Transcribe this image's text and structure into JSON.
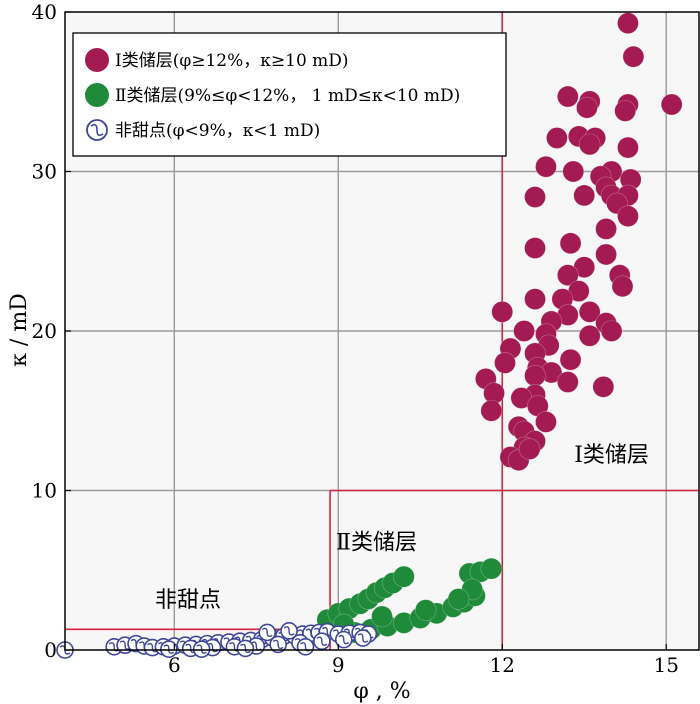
{
  "chart_data": {
    "type": "scatter",
    "xlabel": "φ , %",
    "ylabel": "κ / mD",
    "xlim": [
      4.0,
      15.6
    ],
    "ylim": [
      0,
      40
    ],
    "xticks": [
      6,
      9,
      12,
      15
    ],
    "yticks": [
      0,
      10,
      20,
      30,
      40
    ],
    "grid": true,
    "legend_position": "top-left",
    "colors": {
      "class1": "#a31b52",
      "class2": "#1f8a3a",
      "nonsweet": "#3e469a",
      "boundary": "#d4253d",
      "grid": "#9a9a9a",
      "plot_bg": "#f7f7f7"
    },
    "legend": [
      {
        "key": "class1",
        "marker": "filled",
        "label": "Ⅰ类储层(φ≥12%，κ≥10 mD)"
      },
      {
        "key": "class2",
        "marker": "filled",
        "label": "Ⅱ类储层(9%≤φ<12%， 1 mD≤κ<10 mD)"
      },
      {
        "key": "nonsweet",
        "marker": "open",
        "label": "非甜点(φ<9%，κ<1 mD)"
      }
    ],
    "region_labels": [
      {
        "text": "Ⅰ类储层",
        "x": 14.0,
        "y": 11.8
      },
      {
        "text": "Ⅱ类储层",
        "x": 9.7,
        "y": 6.3
      },
      {
        "text": "非甜点",
        "x": 6.25,
        "y": 2.7
      }
    ],
    "boundaries": [
      {
        "x1": 12,
        "y1": 0,
        "x2": 12,
        "y2": 40
      },
      {
        "x1": 12,
        "y1": 10,
        "x2": 15.6,
        "y2": 10
      },
      {
        "x1": 8.85,
        "y1": 0,
        "x2": 8.85,
        "y2": 10
      },
      {
        "x1": 8.85,
        "y1": 10,
        "x2": 12,
        "y2": 10
      },
      {
        "x1": 4.0,
        "y1": 1.3,
        "x2": 8.85,
        "y2": 1.3
      }
    ],
    "series": [
      {
        "key": "class1",
        "marker": "filled",
        "points": [
          [
            14.3,
            39.3
          ],
          [
            14.4,
            37.2
          ],
          [
            15.1,
            34.2
          ],
          [
            14.3,
            34.2
          ],
          [
            14.25,
            33.8
          ],
          [
            13.2,
            34.7
          ],
          [
            13.6,
            34.4
          ],
          [
            13.55,
            34.0
          ],
          [
            13.0,
            32.1
          ],
          [
            13.4,
            32.2
          ],
          [
            13.7,
            32.1
          ],
          [
            13.6,
            31.7
          ],
          [
            14.3,
            31.5
          ],
          [
            13.3,
            30.0
          ],
          [
            14.0,
            30.0
          ],
          [
            13.8,
            29.7
          ],
          [
            12.8,
            30.3
          ],
          [
            14.35,
            29.5
          ],
          [
            13.9,
            29.0
          ],
          [
            13.5,
            28.5
          ],
          [
            14.0,
            28.5
          ],
          [
            14.3,
            28.5
          ],
          [
            14.1,
            28.0
          ],
          [
            14.3,
            27.2
          ],
          [
            12.6,
            28.4
          ],
          [
            13.9,
            26.4
          ],
          [
            13.25,
            25.5
          ],
          [
            12.6,
            25.2
          ],
          [
            13.9,
            24.8
          ],
          [
            13.5,
            24.0
          ],
          [
            13.2,
            23.5
          ],
          [
            14.15,
            23.5
          ],
          [
            14.2,
            22.8
          ],
          [
            13.4,
            22.5
          ],
          [
            13.1,
            22.0
          ],
          [
            12.6,
            22.0
          ],
          [
            12.0,
            21.2
          ],
          [
            13.6,
            21.2
          ],
          [
            13.2,
            21.0
          ],
          [
            13.9,
            20.5
          ],
          [
            12.9,
            20.6
          ],
          [
            14.0,
            20.0
          ],
          [
            12.4,
            20.0
          ],
          [
            12.8,
            19.8
          ],
          [
            13.6,
            19.7
          ],
          [
            12.85,
            19.1
          ],
          [
            13.25,
            18.2
          ],
          [
            12.15,
            18.9
          ],
          [
            12.6,
            18.6
          ],
          [
            12.05,
            18.0
          ],
          [
            12.65,
            17.7
          ],
          [
            12.9,
            17.4
          ],
          [
            12.6,
            17.2
          ],
          [
            13.2,
            16.8
          ],
          [
            13.85,
            16.5
          ],
          [
            11.7,
            17.0
          ],
          [
            11.85,
            16.1
          ],
          [
            12.6,
            16.0
          ],
          [
            12.35,
            15.8
          ],
          [
            12.65,
            15.3
          ],
          [
            11.8,
            15.0
          ],
          [
            12.8,
            14.3
          ],
          [
            12.3,
            14.0
          ],
          [
            12.4,
            13.7
          ],
          [
            12.6,
            13.1
          ],
          [
            12.4,
            12.7
          ],
          [
            12.15,
            12.1
          ],
          [
            12.3,
            11.9
          ],
          [
            12.5,
            12.6
          ]
        ]
      },
      {
        "key": "class2",
        "marker": "filled",
        "points": [
          [
            8.8,
            1.9
          ],
          [
            9.0,
            2.3
          ],
          [
            9.2,
            2.6
          ],
          [
            9.4,
            2.9
          ],
          [
            9.55,
            3.2
          ],
          [
            9.7,
            3.6
          ],
          [
            9.85,
            3.9
          ],
          [
            10.0,
            4.2
          ],
          [
            10.2,
            4.6
          ],
          [
            9.3,
            1.1
          ],
          [
            9.6,
            1.3
          ],
          [
            9.9,
            1.5
          ],
          [
            10.2,
            1.7
          ],
          [
            10.5,
            2.0
          ],
          [
            10.8,
            2.3
          ],
          [
            11.1,
            2.7
          ],
          [
            11.3,
            3.0
          ],
          [
            11.5,
            3.4
          ],
          [
            11.4,
            4.8
          ],
          [
            11.6,
            4.9
          ],
          [
            11.8,
            5.1
          ],
          [
            11.45,
            3.8
          ],
          [
            11.2,
            3.2
          ],
          [
            9.1,
            1.6
          ],
          [
            9.8,
            2.1
          ],
          [
            10.6,
            2.5
          ]
        ]
      },
      {
        "key": "nonsweet",
        "marker": "open",
        "points": [
          [
            4.0,
            0.0
          ],
          [
            4.9,
            0.2
          ],
          [
            5.1,
            0.3
          ],
          [
            5.3,
            0.4
          ],
          [
            5.45,
            0.25
          ],
          [
            5.6,
            0.15
          ],
          [
            5.8,
            0.2
          ],
          [
            6.0,
            0.25
          ],
          [
            6.2,
            0.3
          ],
          [
            6.4,
            0.35
          ],
          [
            6.6,
            0.4
          ],
          [
            6.8,
            0.45
          ],
          [
            7.0,
            0.5
          ],
          [
            7.2,
            0.55
          ],
          [
            7.4,
            0.6
          ],
          [
            7.6,
            0.65
          ],
          [
            7.8,
            0.75
          ],
          [
            8.0,
            0.85
          ],
          [
            8.2,
            0.9
          ],
          [
            8.35,
            1.0
          ],
          [
            8.5,
            1.05
          ],
          [
            8.65,
            1.1
          ],
          [
            8.8,
            1.15
          ],
          [
            9.0,
            1.0
          ],
          [
            9.2,
            1.05
          ],
          [
            9.4,
            1.1
          ],
          [
            9.55,
            1.0
          ],
          [
            6.3,
            0.1
          ],
          [
            6.7,
            0.15
          ],
          [
            7.1,
            0.2
          ],
          [
            7.5,
            0.25
          ],
          [
            7.9,
            0.35
          ],
          [
            8.3,
            0.45
          ],
          [
            8.7,
            0.55
          ],
          [
            9.1,
            0.65
          ],
          [
            9.45,
            0.75
          ],
          [
            7.7,
            1.1
          ],
          [
            8.1,
            1.2
          ],
          [
            5.9,
            0.05
          ],
          [
            6.5,
            0.05
          ],
          [
            7.3,
            0.1
          ],
          [
            8.4,
            0.2
          ]
        ]
      }
    ]
  }
}
